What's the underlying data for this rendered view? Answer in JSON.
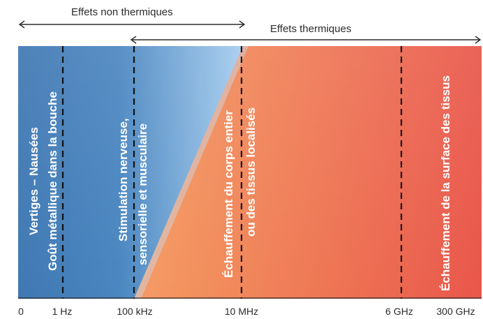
{
  "ranges": {
    "non_thermal": "Effets non thermiques",
    "thermal": "Effets thermiques"
  },
  "zones": {
    "low_freq": {
      "line1": "Vertiges – Nausées",
      "line2": "Goût métallique dans la bouche"
    },
    "nerve": {
      "line1": "Stimulation nerveuse,",
      "line2": "sensorielle et musculaire"
    },
    "body": {
      "line1": "Échauffement du corps entier",
      "line2": "ou des tissus localisés"
    },
    "surface": {
      "line1": "Échauffement de la surface des tissus"
    }
  },
  "axis": {
    "ticks": [
      "0",
      "1 Hz",
      "100 kHz",
      "10 MHz",
      "6 GHz",
      "300 GHz"
    ]
  },
  "colors": {
    "blue_dark": "#3f78b3",
    "blue_light": "#a6cdef",
    "orange": "#f5a468",
    "red": "#e9564a"
  }
}
